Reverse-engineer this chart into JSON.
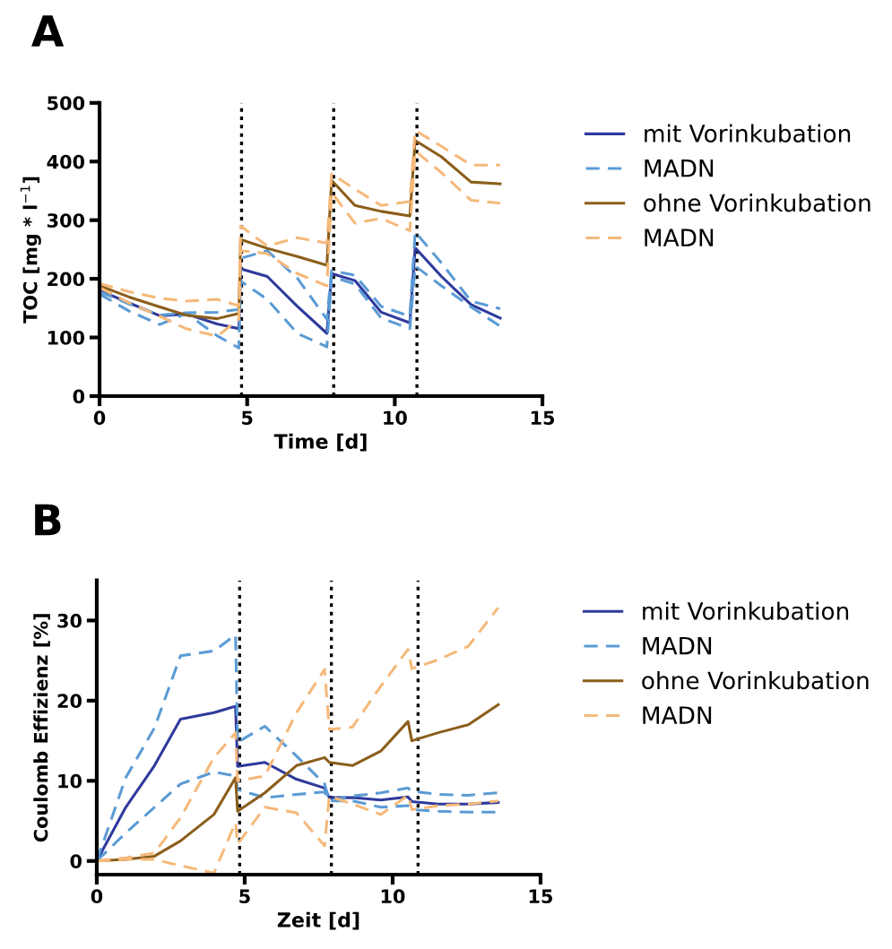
{
  "chart_data": [
    {
      "type": "line",
      "title": "A",
      "xlabel": "Time [d]",
      "ylabel": "TOC [mg * l$^{−1}$]",
      "legend": "right",
      "x": [
        0,
        1,
        2.04,
        2.94,
        3.98,
        4.72,
        4.78,
        5.68,
        6.7,
        7.7,
        7.86,
        8.65,
        9.54,
        10.51,
        10.69,
        11.58,
        12.58,
        13.57
      ],
      "xlim": [
        0,
        15
      ],
      "xticks": [
        0,
        5,
        10,
        15
      ],
      "ylim": [
        0,
        500
      ],
      "yticks": [
        0,
        100,
        200,
        300,
        400,
        500
      ],
      "series": [
        {
          "name": "mit Vorinkubation",
          "color": "#2e3a9c",
          "line_style": "solid",
          "values": [
            180,
            159,
            137,
            140,
            123,
            115,
            217,
            204,
            153,
            107,
            209,
            197,
            143,
            125,
            253,
            204,
            156,
            133
          ]
        },
        {
          "name": "MADN",
          "color": "#5b9bd5",
          "line_style": "dashed",
          "values": [
            178,
            157,
            138,
            142,
            143,
            148,
            235,
            248,
            201,
            131,
            214,
            206,
            153,
            136,
            280,
            227,
            162,
            149
          ]
        },
        {
          "color": "#5b9bd5",
          "line_style": "dashed",
          "values": [
            174,
            145,
            122,
            141,
            103,
            82,
            196,
            165,
            107,
            84,
            204,
            191,
            133,
            115,
            222,
            188,
            152,
            119
          ]
        },
        {
          "name": "ohne Vorinkubation",
          "color": "#8b5e1a",
          "line_style": "solid",
          "values": [
            188,
            169,
            152,
            138,
            132,
            141,
            267,
            252,
            238,
            223,
            368,
            325,
            315,
            307,
            436,
            408,
            365,
            362
          ]
        },
        {
          "name": "MADN",
          "color": "#f5b97a",
          "line_style": "dashed",
          "values": [
            192,
            178,
            167,
            162,
            165,
            154,
            290,
            256,
            270,
            261,
            379,
            353,
            325,
            332,
            453,
            426,
            394,
            394
          ]
        },
        {
          "color": "#f5b97a",
          "line_style": "dashed",
          "values": [
            185,
            159,
            136,
            115,
            102,
            131,
            248,
            243,
            209,
            188,
            347,
            295,
            303,
            282,
            418,
            381,
            334,
            329
          ]
        }
      ],
      "ref_lines": [
        {
          "axis": "x",
          "value": 4.81,
          "color": "#000000",
          "line_style": "dotted"
        },
        {
          "axis": "x",
          "value": 7.93,
          "color": "#000000",
          "line_style": "dotted"
        },
        {
          "axis": "x",
          "value": 10.75,
          "color": "#000000",
          "line_style": "dotted"
        }
      ]
    },
    {
      "type": "line",
      "title": "B",
      "xlabel": "Zeit [d]",
      "ylabel": "Coulomb Effizienz [%]",
      "legend": "right",
      "x": [
        0,
        0.98,
        1.95,
        2.83,
        3.96,
        4.69,
        4.76,
        5.68,
        6.75,
        7.7,
        7.86,
        8.64,
        9.6,
        10.52,
        10.65,
        11.54,
        12.56,
        13.57
      ],
      "xlim": [
        0,
        15
      ],
      "xticks": [
        0,
        5,
        10,
        15
      ],
      "ylim": [
        -1.7,
        35
      ],
      "yticks": [
        0,
        10,
        20,
        30
      ],
      "series": [
        {
          "name": "mit Vorinkubation",
          "color": "#2e3a9c",
          "line_style": "solid",
          "values": [
            0,
            6.7,
            11.9,
            17.7,
            18.5,
            19.3,
            11.8,
            12.3,
            10.2,
            9.1,
            7.9,
            7.9,
            7.6,
            8.0,
            7.4,
            7.1,
            7.1,
            7.3
          ]
        },
        {
          "name": "MADN",
          "color": "#5b9bd5",
          "line_style": "dashed",
          "values": [
            0,
            10.4,
            16.6,
            25.6,
            26.2,
            28.2,
            14.8,
            16.8,
            13.1,
            9.6,
            7.5,
            8.1,
            8.5,
            9.1,
            8.7,
            8.3,
            8.2,
            8.5
          ]
        },
        {
          "color": "#5b9bd5",
          "line_style": "dashed",
          "values": [
            0,
            3.5,
            6.7,
            9.6,
            11.1,
            10.6,
            8.9,
            7.9,
            8.3,
            8.6,
            7.5,
            7.5,
            6.7,
            6.9,
            6.4,
            6.2,
            6.1,
            6.1
          ]
        },
        {
          "name": "ohne Vorinkubation",
          "color": "#8b5e1a",
          "line_style": "solid",
          "values": [
            0,
            0.2,
            0.6,
            2.5,
            5.8,
            10.4,
            6.2,
            8.5,
            11.9,
            12.9,
            12.3,
            11.9,
            13.7,
            17.4,
            15.0,
            16.0,
            17.0,
            19.5
          ]
        },
        {
          "name": "MADN",
          "color": "#f5b97a",
          "line_style": "dashed",
          "values": [
            0,
            0.4,
            1.0,
            5.4,
            12.9,
            16.0,
            10.0,
            10.6,
            18.5,
            23.9,
            16.4,
            16.7,
            21.8,
            26.4,
            24.0,
            25.1,
            26.8,
            31.6
          ]
        },
        {
          "color": "#f5b97a",
          "line_style": "dashed",
          "values": [
            0,
            0.2,
            0.2,
            -0.6,
            -1.5,
            4.8,
            2.1,
            6.7,
            6.0,
            1.9,
            8.1,
            7.1,
            5.8,
            8.2,
            6.4,
            6.9,
            7.1,
            7.5
          ]
        }
      ],
      "ref_lines": [
        {
          "axis": "x",
          "value": 4.83,
          "color": "#000000",
          "line_style": "dotted"
        },
        {
          "axis": "x",
          "value": 7.93,
          "color": "#000000",
          "line_style": "dotted"
        },
        {
          "axis": "x",
          "value": 10.86,
          "color": "#000000",
          "line_style": "dotted"
        }
      ]
    }
  ]
}
